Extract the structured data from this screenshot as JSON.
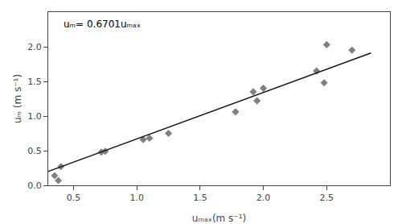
{
  "chart_data": {
    "type": "scatter",
    "x_label": "uₘₐₓ(m s⁻¹)",
    "y_label": "uₘ (m s⁻¹)",
    "annotation": "uₘ= 0.6701uₘₐₓ",
    "series": [
      {
        "type": "scatter",
        "marker": "diamond",
        "color": "#808080",
        "x": [
          0.35,
          0.38,
          0.4,
          0.72,
          0.75,
          1.05,
          1.1,
          1.25,
          1.78,
          1.92,
          1.95,
          2.0,
          2.42,
          2.48,
          2.5,
          2.7
        ],
        "values": [
          0.14,
          0.07,
          0.27,
          0.48,
          0.49,
          0.66,
          0.68,
          0.75,
          1.06,
          1.35,
          1.22,
          1.4,
          1.65,
          1.48,
          2.03,
          1.95
        ]
      },
      {
        "type": "line",
        "line_style": "solid",
        "color": "#1a1a1a",
        "x": [
          0.28,
          2.85
        ],
        "values": [
          0.187628,
          1.909785
        ]
      }
    ],
    "xlim": [
      0.3,
      3.0
    ],
    "ylim": [
      0,
      2.5
    ],
    "xticks": [
      0.5,
      {
        "value": 1.0,
        "label": "1.0"
      },
      1.5,
      {
        "value": 2.0,
        "label": "2.0"
      },
      2.5
    ],
    "yticks": [
      {
        "value": 0,
        "label": "0.0"
      },
      0.5,
      {
        "value": 1.0,
        "label": "1.0"
      },
      1.5,
      {
        "value": 2.0,
        "label": "2.0"
      }
    ],
    "grid": false
  }
}
